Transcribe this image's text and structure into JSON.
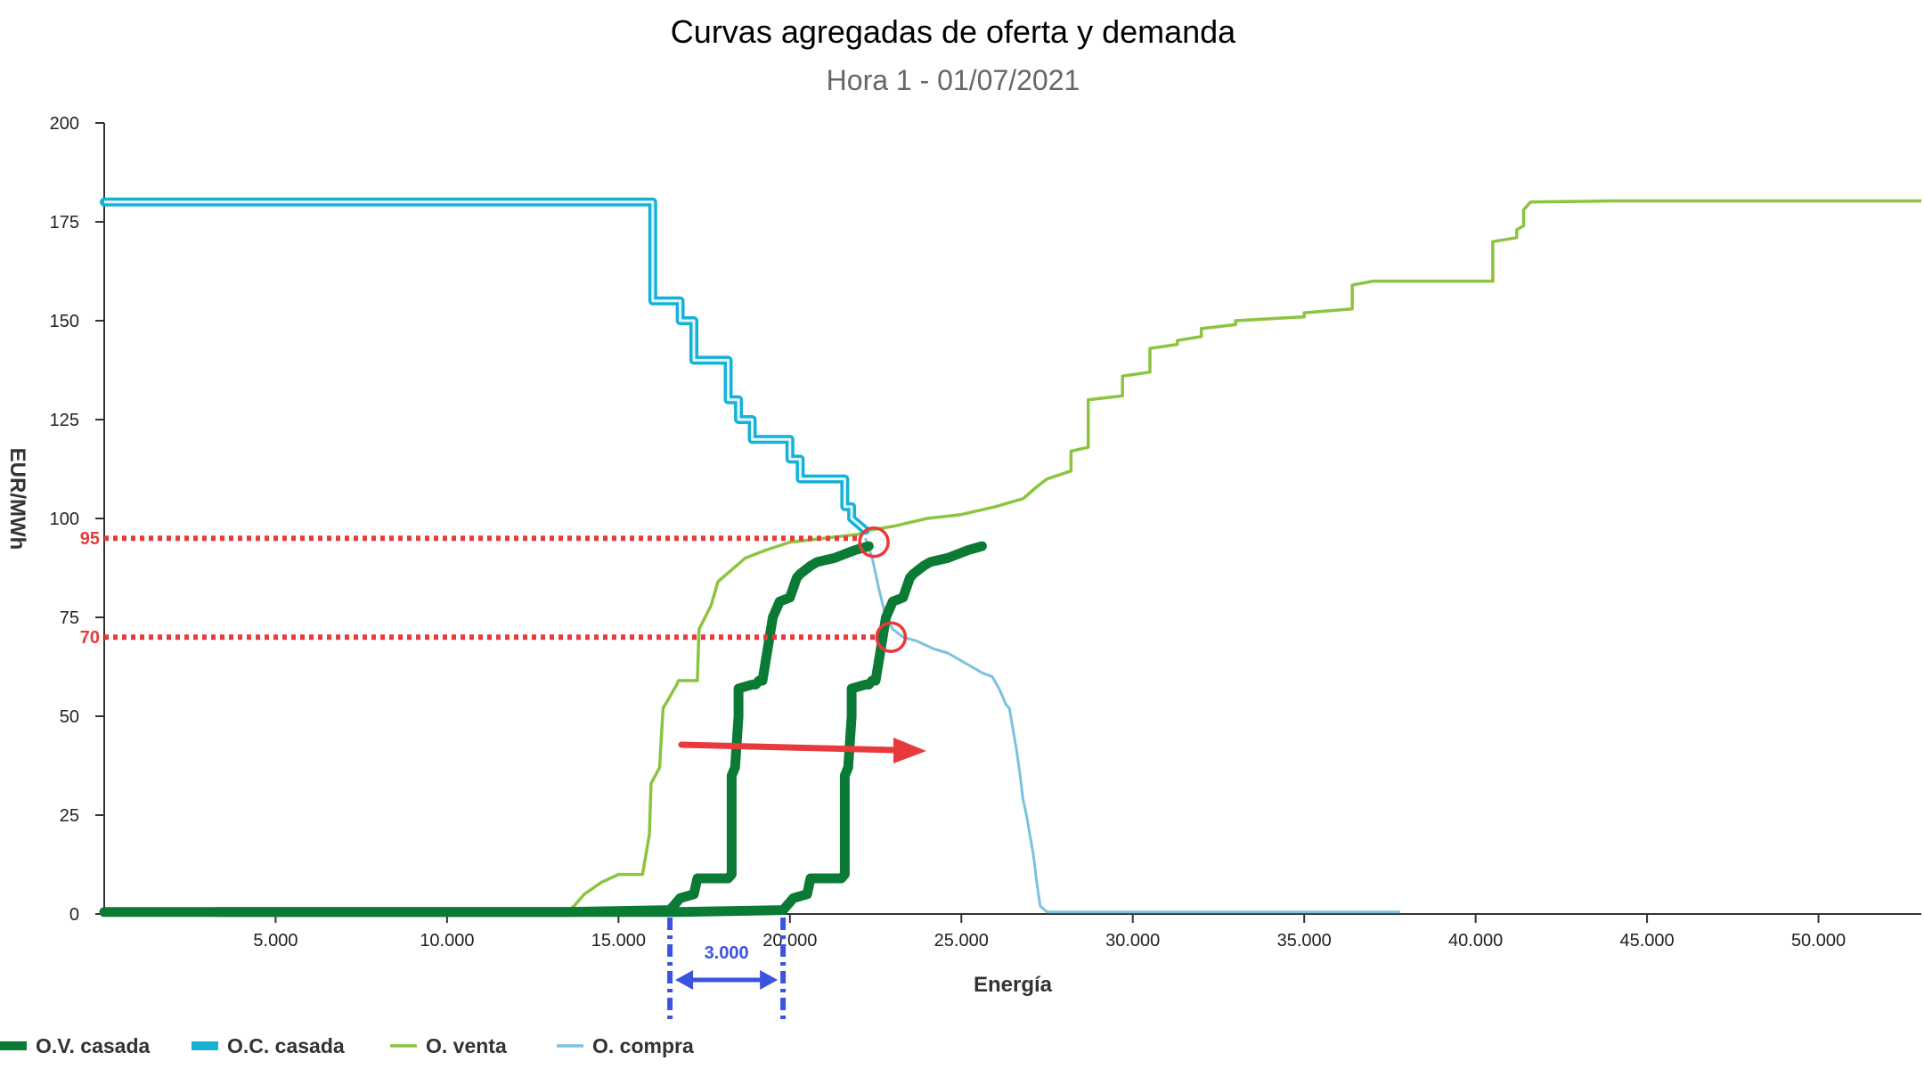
{
  "chart_data": {
    "type": "line",
    "title": "Curvas agregadas de oferta y demanda",
    "subtitle": "Hora 1 - 01/07/2021",
    "xlabel": "Energía",
    "ylabel": "EUR/MWh",
    "xlim": [
      0,
      53000
    ],
    "ylim": [
      0,
      200
    ],
    "x_ticks": [
      5000,
      10000,
      15000,
      20000,
      25000,
      30000,
      35000,
      40000,
      45000,
      50000
    ],
    "x_tick_labels": [
      "5.000",
      "10.000",
      "15.000",
      "20.000",
      "25.000",
      "30.000",
      "35.000",
      "40.000",
      "45.000",
      "50.000"
    ],
    "y_ticks": [
      0,
      25,
      50,
      75,
      100,
      125,
      150,
      175,
      200
    ],
    "y_tick_labels": [
      "0",
      "25",
      "50",
      "75",
      "100",
      "125",
      "150",
      "175",
      "200"
    ],
    "legend_position": "bottom-left",
    "series": [
      {
        "name": "O.V. casada",
        "color": "#0a7a35",
        "style": "casada",
        "x": [
          0,
          13500,
          16500,
          16800,
          17200,
          17300,
          18200,
          18300,
          18300,
          18400,
          18500,
          18500,
          18900,
          19000,
          19100,
          19200,
          19500,
          19700,
          20000,
          20200,
          20300,
          20600,
          20800,
          21300,
          21900,
          22300
        ],
        "y": [
          0.5,
          0.5,
          1,
          4,
          5,
          9,
          9,
          10,
          35,
          37,
          50,
          57,
          58,
          58,
          59,
          59,
          75,
          79,
          80,
          85,
          86,
          88,
          89,
          90,
          92,
          93
        ]
      },
      {
        "name": "O.C. casada",
        "color": "#15b2d6",
        "style": "casada",
        "x": [
          0,
          15500,
          16000,
          16000,
          16800,
          16800,
          17200,
          17200,
          18200,
          18200,
          18500,
          18500,
          18900,
          18900,
          20000,
          20000,
          20300,
          20300,
          21600,
          21600,
          21800,
          21800,
          22200
        ],
        "y": [
          180,
          180,
          180,
          155,
          155,
          150,
          150,
          140,
          140,
          130,
          130,
          125,
          125,
          120,
          120,
          115,
          115,
          110,
          110,
          103,
          103,
          100,
          97
        ]
      },
      {
        "name": "O. venta",
        "color": "#8cc43f",
        "style": "plain",
        "x": [
          0,
          13500,
          13700,
          14000,
          14500,
          15000,
          15000,
          15700,
          15900,
          15950,
          16200,
          16300,
          16700,
          16750,
          17300,
          17350,
          17700,
          17900,
          18300,
          18700,
          19300,
          20000,
          21000,
          22000,
          22300,
          23000,
          24000,
          25000,
          26000,
          26800,
          27200,
          27500,
          28200,
          28200,
          28700,
          28700,
          29700,
          29700,
          30500,
          30500,
          31300,
          31300,
          32000,
          32000,
          33000,
          33000,
          35000,
          35000,
          36400,
          36400,
          37000,
          37000,
          40500,
          40500,
          41200,
          41200,
          41400,
          41400,
          41600,
          44000,
          53000
        ],
        "y": [
          0.5,
          0.5,
          2,
          5,
          8,
          10,
          10,
          10,
          20,
          33,
          37,
          52,
          58,
          59,
          59,
          72,
          78,
          84,
          87,
          90,
          92,
          94,
          95,
          96,
          97,
          98,
          100,
          101,
          103,
          105,
          108,
          110,
          112,
          117,
          118,
          130,
          131,
          136,
          137,
          143,
          144,
          145,
          146,
          148,
          149,
          150,
          151,
          152,
          153,
          159,
          160,
          160,
          160,
          170,
          171,
          173,
          174,
          178,
          180,
          180.3,
          180.3
        ]
      },
      {
        "name": "O. compra",
        "color": "#7ac2e0",
        "style": "plain",
        "x": [
          22200,
          22400,
          22600,
          22800,
          23000,
          23300,
          23700,
          24200,
          24600,
          25000,
          25400,
          25600,
          25900,
          26100,
          26200,
          26300,
          26400,
          26500,
          26600,
          26700,
          26800,
          26900,
          27000,
          27100,
          27200,
          27300,
          27500,
          30000,
          37800
        ],
        "y": [
          95,
          90,
          82,
          75,
          72,
          70,
          69,
          67,
          66,
          64,
          62,
          61,
          60,
          57,
          55,
          53,
          52,
          47,
          42,
          36,
          29,
          25,
          20,
          15,
          8,
          2,
          0.5,
          0.5,
          0.5
        ]
      }
    ],
    "annotations": {
      "price_high": "95",
      "price_low": "70",
      "shift": "3.000",
      "price_high_value": 95,
      "price_low_value": 70,
      "intersections": [
        {
          "x": 22450,
          "y": 94
        },
        {
          "x": 22950,
          "y": 70
        }
      ],
      "shift_from_x": 16500,
      "shift_to_x": 19800
    }
  },
  "colors": {
    "annotation_red": "#e8393b",
    "annotation_blue": "#3b54e0",
    "axis": "#333333"
  }
}
